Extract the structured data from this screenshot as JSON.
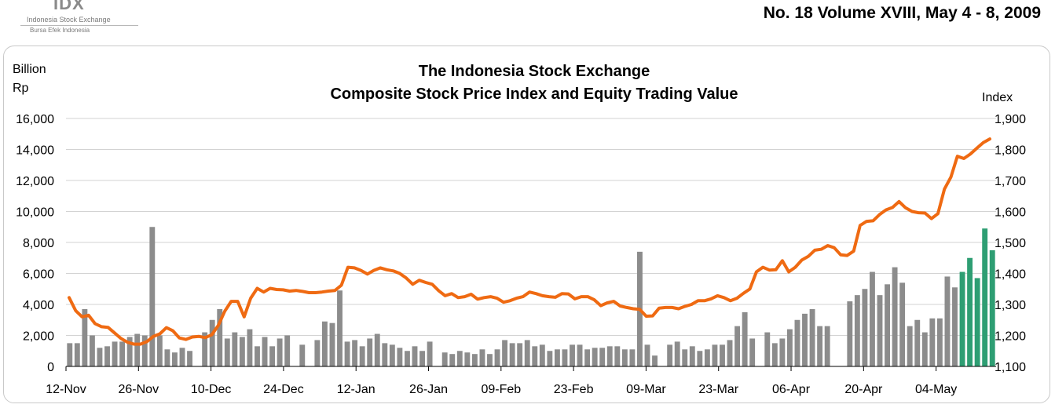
{
  "header": {
    "logo_mark": "IDX",
    "logo_line1": "Indonesia Stock Exchange",
    "logo_line2": "Bursa Efek Indonesia",
    "issue": "No. 18 Volume XVIII, May 4 - 8, 2009"
  },
  "chart_data": {
    "type": "bar",
    "title": "The Indonesia Stock Exchange",
    "subtitle": "Composite Stock Price Index and Equity Trading Value",
    "ylabel_left_line1": "Billion",
    "ylabel_left_line2": "Rp",
    "ylabel_right": "Index",
    "ylim": [
      0,
      16000
    ],
    "y2lim": [
      1100,
      1900
    ],
    "yticks": [
      "0",
      "2,000",
      "4,000",
      "6,000",
      "8,000",
      "10,000",
      "12,000",
      "14,000",
      "16,000"
    ],
    "y2ticks": [
      "1,100",
      "1,200",
      "1,300",
      "1,400",
      "1,500",
      "1,600",
      "1,700",
      "1,800",
      "1,900"
    ],
    "xtick_labels": [
      "12-Nov",
      "26-Nov",
      "10-Dec",
      "24-Dec",
      "12-Jan",
      "26-Jan",
      "09-Feb",
      "23-Feb",
      "09-Mar",
      "23-Mar",
      "06-Apr",
      "20-Apr",
      "04-May"
    ],
    "grid": true,
    "colors": {
      "bars": "#8c8c8c",
      "bars_latest_week": "#2e9e73",
      "index_line": "#ef6a12"
    },
    "series": [
      {
        "kind": "bar",
        "values": [
          1500,
          1500,
          3700,
          2000,
          1200,
          1300,
          1600,
          1600,
          1900,
          2100,
          2000,
          9000,
          2000,
          1100,
          900,
          1200,
          1000,
          null,
          2200,
          3000,
          3700,
          1800,
          2200,
          1900,
          2400,
          1300,
          1900,
          1300,
          1800,
          2000,
          null,
          1400,
          null,
          1700,
          2900,
          2800,
          4900,
          1600,
          1700,
          1300,
          1800,
          2100,
          1500,
          1400,
          1200,
          1000,
          1300,
          1000,
          1600,
          null,
          900,
          800,
          1000,
          900,
          800,
          1100,
          800,
          1100,
          1700,
          1500,
          1500,
          1700,
          1300,
          1400,
          1000,
          1100,
          1100,
          1400,
          1400,
          1100,
          1200,
          1200,
          1300,
          1300,
          1100,
          1100,
          7400,
          1400,
          700,
          null,
          1400,
          1600,
          1100,
          1300,
          1000,
          1100,
          1400,
          1400,
          1700,
          2600,
          3500,
          1800,
          null,
          2200,
          1500,
          1800,
          2400,
          3000,
          3400,
          3700,
          2600,
          2600,
          null,
          null,
          4200,
          4600,
          5000,
          6100,
          4600,
          5300,
          6400,
          5400,
          2600,
          3000,
          2200,
          3100,
          3100,
          5800,
          5100,
          6100,
          7000,
          5700,
          8900,
          7500
        ],
        "latest_week_count": 5
      },
      {
        "kind": "line",
        "axis": "right",
        "values": [
          1322,
          1280,
          1260,
          1265,
          1238,
          1228,
          1226,
          1208,
          1190,
          1178,
          1172,
          1172,
          1180,
          1197,
          1205,
          1225,
          1215,
          1192,
          1187,
          1195,
          1197,
          1193,
          1202,
          1232,
          1278,
          1310,
          1310,
          1260,
          1320,
          1352,
          1340,
          1352,
          1348,
          1347,
          1343,
          1345,
          1342,
          1338,
          1338,
          1340,
          1343,
          1345,
          1362,
          1420,
          1418,
          1410,
          1398,
          1410,
          1418,
          1412,
          1408,
          1400,
          1385,
          1365,
          1378,
          1371,
          1365,
          1344,
          1328,
          1335,
          1322,
          1325,
          1333,
          1317,
          1322,
          1325,
          1320,
          1307,
          1312,
          1320,
          1325,
          1340,
          1335,
          1328,
          1325,
          1323,
          1335,
          1334,
          1318,
          1325,
          1325,
          1315,
          1296,
          1305,
          1310,
          1295,
          1290,
          1286,
          1284,
          1262,
          1263,
          1288,
          1290,
          1290,
          1286,
          1294,
          1300,
          1312,
          1312,
          1318,
          1328,
          1322,
          1312,
          1320,
          1336,
          1350,
          1405,
          1420,
          1411,
          1412,
          1441,
          1405,
          1420,
          1443,
          1455,
          1475,
          1478,
          1490,
          1483,
          1460,
          1458,
          1472,
          1555,
          1568,
          1570,
          1590,
          1605,
          1613,
          1632,
          1612,
          1600,
          1596,
          1595,
          1577,
          1593,
          1672,
          1711,
          1778,
          1771,
          1785,
          1804,
          1822,
          1834
        ]
      }
    ]
  }
}
